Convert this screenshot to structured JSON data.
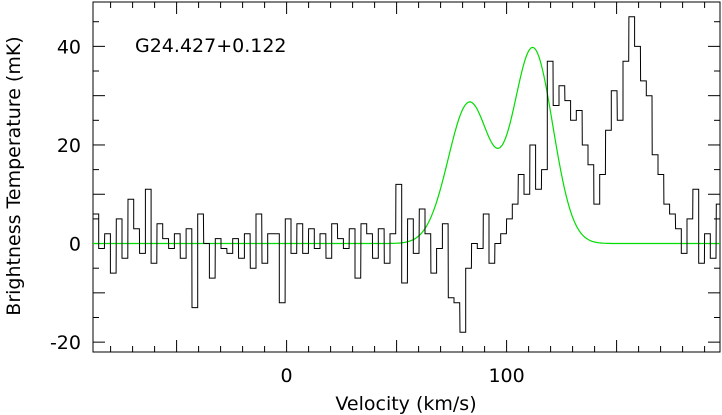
{
  "chart_data": {
    "type": "line",
    "annotation": "G24.427+0.122",
    "xlabel": "Velocity (km/s)",
    "ylabel": "Brightness Temperature (mK)",
    "xlim": [
      -88,
      197
    ],
    "ylim": [
      -22,
      49
    ],
    "x_ticks": [
      0,
      100
    ],
    "y_ticks": [
      -20,
      0,
      20,
      40
    ],
    "grid": false,
    "series": [
      {
        "style": "histogram",
        "color": "#000000",
        "x": [
          -86.7,
          -84.1,
          -81.4,
          -78.8,
          -76.1,
          -73.5,
          -70.8,
          -68.2,
          -65.5,
          -62.9,
          -60.3,
          -57.6,
          -55.0,
          -52.3,
          -49.7,
          -47.0,
          -44.4,
          -41.7,
          -39.1,
          -36.4,
          -33.8,
          -31.1,
          -28.5,
          -25.8,
          -23.2,
          -20.5,
          -17.9,
          -15.2,
          -12.6,
          -9.9,
          -7.3,
          -4.6,
          -2.0,
          0.7,
          3.3,
          6.0,
          8.6,
          11.3,
          13.9,
          16.5,
          19.2,
          21.8,
          24.5,
          27.1,
          29.8,
          32.4,
          35.1,
          37.7,
          40.4,
          43.0,
          45.7,
          48.3,
          51.0,
          53.6,
          56.3,
          58.9,
          61.6,
          64.2,
          66.9,
          69.5,
          72.1,
          74.8,
          77.4,
          80.1,
          82.7,
          85.4,
          88.0,
          90.7,
          93.3,
          96.0,
          98.6,
          101.3,
          103.9,
          106.6,
          109.2,
          111.9,
          114.5,
          117.2,
          119.8,
          122.5,
          125.1,
          127.8,
          130.4,
          133.0,
          135.7,
          138.3,
          141.0,
          143.6,
          146.3,
          148.9,
          151.6,
          154.2,
          156.9,
          159.5,
          162.2,
          164.8,
          167.5,
          170.1,
          172.8,
          175.4,
          178.1,
          180.7,
          183.3,
          186.0,
          188.6,
          191.3,
          193.9,
          196.6
        ],
        "values": [
          6,
          -1,
          2,
          -6,
          5,
          -3,
          9,
          3,
          -2,
          11,
          -4,
          4,
          1,
          -1,
          2,
          -3,
          3,
          -13,
          6,
          0,
          -7,
          1,
          -1,
          -2,
          1,
          -3,
          2,
          -5,
          6,
          -4,
          2,
          2,
          -12,
          5,
          -2,
          4,
          -2,
          3,
          -1,
          2,
          -3,
          4,
          1,
          -1,
          3,
          -7,
          4,
          2,
          -3,
          3,
          -4,
          2,
          12,
          -8,
          5,
          -2,
          7,
          2,
          -6,
          -1,
          4,
          -11,
          -12,
          -18,
          -5,
          0,
          -1,
          6,
          -4,
          0,
          2,
          5,
          8,
          14,
          10,
          20,
          11,
          15,
          37,
          28,
          32,
          29,
          25,
          27,
          20,
          16,
          8,
          14,
          23,
          31,
          25,
          37,
          46,
          40,
          33,
          30,
          18,
          14,
          8,
          6,
          3,
          -2,
          5,
          11,
          -4,
          2,
          -3,
          8
        ]
      },
      {
        "style": "fit",
        "color": "#00dd00",
        "components": [
          {
            "amplitude": 28.5,
            "center": 83,
            "sigma": 9.5
          },
          {
            "amplitude": 39.5,
            "center": 112,
            "sigma": 9.0
          }
        ]
      }
    ]
  }
}
